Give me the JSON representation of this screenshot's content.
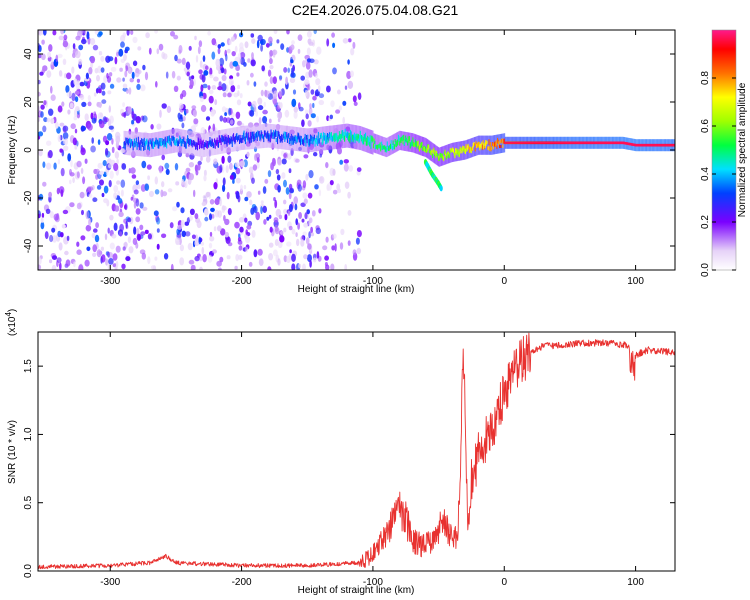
{
  "title": "C2E4.2026.075.04.08.G21",
  "chart_data": [
    {
      "type": "heatmap",
      "name": "spectrogram",
      "xlabel": "Height of straight line (km)",
      "ylabel": "Frequency (Hz)",
      "xlim": [
        -355,
        130
      ],
      "ylim": [
        -50,
        50
      ],
      "xticks": [
        -300,
        -200,
        -100,
        0,
        100
      ],
      "yticks": [
        -40,
        -20,
        0,
        20,
        40
      ],
      "colorbar": {
        "label": "Normalized spectral amplitude",
        "range": [
          0,
          1
        ],
        "ticks": [
          "0.0",
          "0.2",
          "0.4",
          "0.6",
          "0.8"
        ],
        "tick_values": [
          0,
          0.2,
          0.4,
          0.6,
          0.8
        ],
        "colormap": "rainbow-pink"
      },
      "signal_track": {
        "x": [
          -290,
          -270,
          -250,
          -230,
          -200,
          -180,
          -150,
          -120,
          -110,
          -100,
          -90,
          -80,
          -70,
          -60,
          -50,
          -40,
          -30,
          -20,
          -10,
          0,
          20,
          50,
          90,
          100,
          130
        ],
        "frequency": [
          3,
          2,
          4,
          2,
          5,
          6,
          4,
          6,
          5,
          3,
          1,
          4,
          3,
          1,
          -3,
          -1,
          0,
          2,
          2,
          3,
          3,
          3,
          3,
          2,
          2
        ],
        "amplitude": [
          0.3,
          0.35,
          0.35,
          0.25,
          0.3,
          0.3,
          0.35,
          0.45,
          0.45,
          0.5,
          0.45,
          0.5,
          0.55,
          0.6,
          0.6,
          0.65,
          0.7,
          0.75,
          0.8,
          0.85,
          0.9,
          0.95,
          0.97,
          0.97,
          0.95
        ]
      },
      "secondary_track": {
        "x": [
          -60,
          -55,
          -50,
          -48
        ],
        "frequency": [
          -5,
          -10,
          -14,
          -16
        ]
      },
      "noise_region": {
        "x_range": [
          -355,
          -120
        ],
        "amplitude": [
          0.05,
          0.35
        ]
      }
    },
    {
      "type": "line",
      "name": "snr",
      "xlabel": "Height of straight line (km)",
      "ylabel": "SNR (10 * v/v)",
      "y_multiplier": "(x10",
      "y_multiplier_exp": "4",
      "y_multiplier_close": ")",
      "xlim": [
        -355,
        130
      ],
      "ylim": [
        0,
        1.75
      ],
      "xticks": [
        -300,
        -200,
        -100,
        0,
        100
      ],
      "yticks": [
        "0.0",
        "0.5",
        "1.0",
        "1.5"
      ],
      "ytick_values": [
        0,
        0.5,
        1.0,
        1.5
      ],
      "color": "#e8312f",
      "x": [
        -355,
        -300,
        -270,
        -258,
        -250,
        -200,
        -150,
        -110,
        -100,
        -95,
        -90,
        -85,
        -80,
        -75,
        -70,
        -60,
        -50,
        -45,
        -40,
        -35,
        -31,
        -28,
        -25,
        -20,
        -15,
        -10,
        -5,
        0,
        10,
        20,
        30,
        40,
        60,
        80,
        95,
        100,
        110,
        130
      ],
      "y": [
        0.03,
        0.04,
        0.06,
        0.11,
        0.06,
        0.04,
        0.04,
        0.06,
        0.12,
        0.2,
        0.28,
        0.35,
        0.45,
        0.4,
        0.22,
        0.18,
        0.3,
        0.35,
        0.22,
        0.3,
        1.62,
        0.35,
        0.65,
        0.85,
        0.95,
        1.05,
        1.15,
        1.3,
        1.5,
        1.6,
        1.65,
        1.65,
        1.67,
        1.67,
        1.65,
        1.58,
        1.62,
        1.6
      ]
    }
  ]
}
